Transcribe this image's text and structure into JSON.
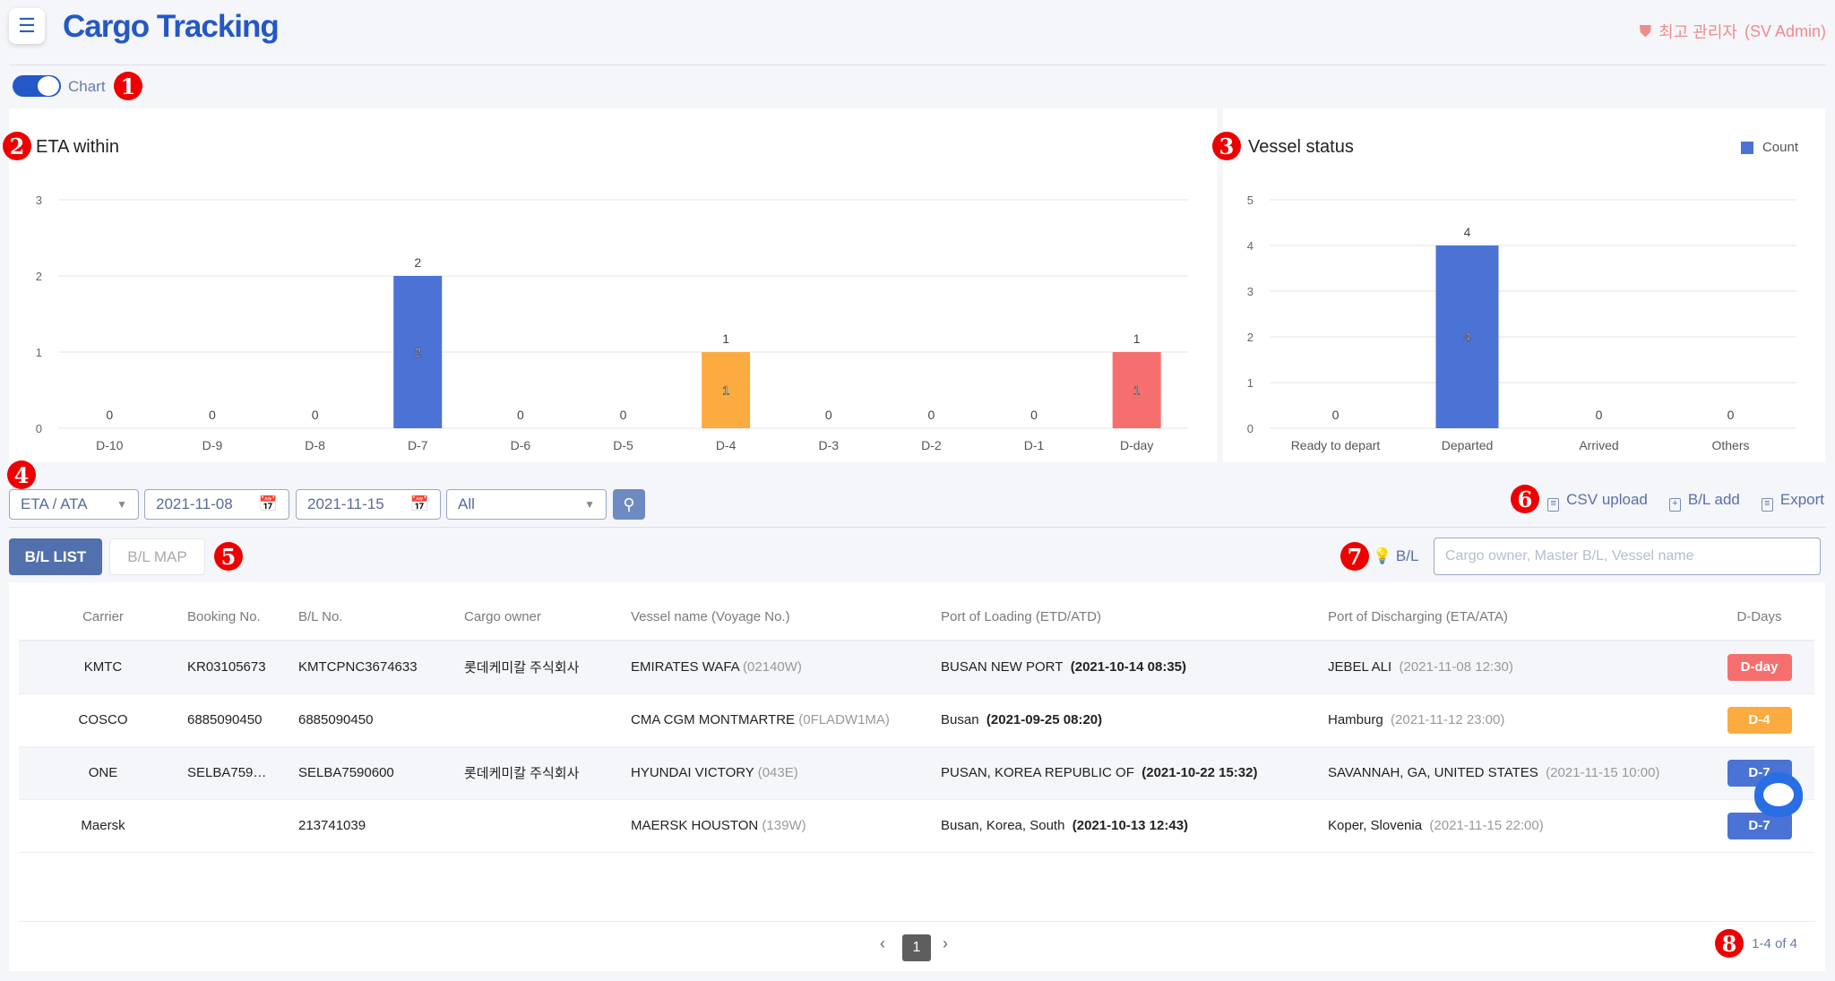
{
  "header": {
    "title": "Cargo Tracking",
    "admin_role": "최고 관리자",
    "admin_name": "(SV Admin)"
  },
  "toggle": {
    "label": "Chart",
    "on": true
  },
  "markers": [
    "1",
    "2",
    "3",
    "4",
    "5",
    "6",
    "7",
    "8"
  ],
  "colors": {
    "blue": "#4a73d5",
    "orange": "#fbab3f",
    "red": "#f66f6f"
  },
  "chart_data": [
    {
      "type": "bar",
      "title": "ETA within",
      "categories": [
        "D-10",
        "D-9",
        "D-8",
        "D-7",
        "D-6",
        "D-5",
        "D-4",
        "D-3",
        "D-2",
        "D-1",
        "D-day"
      ],
      "values": [
        0,
        0,
        0,
        2,
        0,
        0,
        1,
        0,
        0,
        0,
        1
      ],
      "bar_colors": [
        "#4a73d5",
        "#4a73d5",
        "#4a73d5",
        "#4a73d5",
        "#4a73d5",
        "#4a73d5",
        "#fbab3f",
        "#4a73d5",
        "#4a73d5",
        "#4a73d5",
        "#f66f6f"
      ],
      "ylim": [
        0,
        3
      ],
      "yticks": [
        0,
        1,
        2,
        3
      ],
      "grid": true
    },
    {
      "type": "bar",
      "title": "Vessel status",
      "categories": [
        "Ready to depart",
        "Departed",
        "Arrived",
        "Others"
      ],
      "values": [
        0,
        4,
        0,
        0
      ],
      "legend": [
        "Count"
      ],
      "legend_position": "top-right",
      "ylim": [
        0,
        5
      ],
      "yticks": [
        0,
        1,
        2,
        3,
        4,
        5
      ],
      "grid": true
    }
  ],
  "filters": {
    "date_type": "ETA / ATA",
    "start_date": "2021-11-08",
    "end_date": "2021-11-15",
    "status": "All"
  },
  "actions": {
    "csv_upload": "CSV upload",
    "bl_add": "B/L add",
    "export": "Export"
  },
  "tabs": {
    "list": "B/L LIST",
    "map": "B/L MAP"
  },
  "search": {
    "label": "B/L",
    "placeholder": "Cargo owner, Master B/L, Vessel name"
  },
  "table": {
    "columns": [
      "Carrier",
      "Booking No.",
      "B/L No.",
      "Cargo owner",
      "Vessel name (Voyage No.)",
      "Port of Loading (ETD/ATD)",
      "Port of Discharging (ETA/ATA)",
      "D-Days"
    ],
    "rows": [
      {
        "carrier": "KMTC",
        "booking": "KR03105673",
        "bl": "KMTCPNC3674633",
        "owner": "롯데케미칼 주식회사",
        "vessel": "EMIRATES WAFA",
        "voyage": "(02140W)",
        "pol": "BUSAN NEW PORT",
        "etd": "(2021-10-14 08:35)",
        "pod": "JEBEL ALI",
        "eta": "(2021-11-08 12:30)",
        "dday": "D-day",
        "color": "#f66f6f"
      },
      {
        "carrier": "COSCO",
        "booking": "6885090450",
        "bl": "6885090450",
        "owner": "",
        "vessel": "CMA CGM MONTMARTRE",
        "voyage": "(0FLADW1MA)",
        "pol": "Busan",
        "etd": "(2021-09-25 08:20)",
        "pod": "Hamburg",
        "eta": "(2021-11-12 23:00)",
        "dday": "D-4",
        "color": "#fbab3f"
      },
      {
        "carrier": "ONE",
        "booking": "SELBA759…",
        "bl": "SELBA7590600",
        "owner": "롯데케미칼 주식회사",
        "vessel": "HYUNDAI VICTORY",
        "voyage": "(043E)",
        "pol": "PUSAN, KOREA REPUBLIC OF",
        "etd": "(2021-10-22 15:32)",
        "pod": "SAVANNAH, GA, UNITED STATES",
        "eta": "(2021-11-15 10:00)",
        "dday": "D-7",
        "color": "#4a73d5"
      },
      {
        "carrier": "Maersk",
        "booking": "",
        "bl": "213741039",
        "owner": "",
        "vessel": "MAERSK HOUSTON",
        "voyage": "(139W)",
        "pol": "Busan, Korea, South",
        "etd": "(2021-10-13 12:43)",
        "pod": "Koper, Slovenia",
        "eta": "(2021-11-15 22:00)",
        "dday": "D-7",
        "color": "#4a73d5"
      }
    ]
  },
  "pagination": {
    "current": "1",
    "summary": "1-4 of 4",
    "prev": "‹",
    "next": "›"
  }
}
